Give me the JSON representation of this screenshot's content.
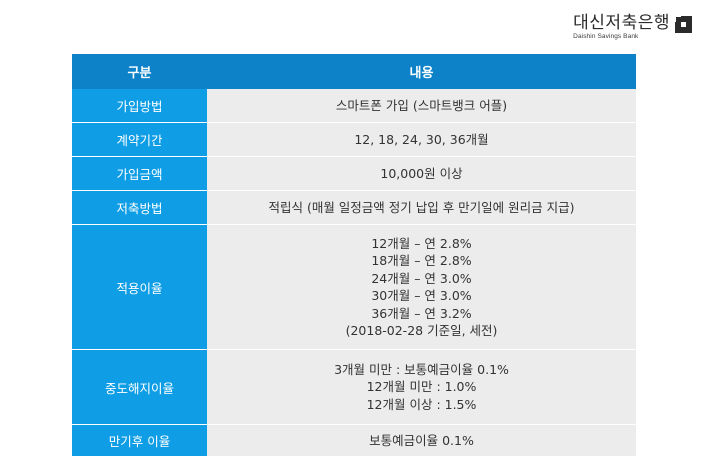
{
  "logo": {
    "name_ko": "대신저축은행",
    "name_en": "Daishin Savings Bank",
    "mark_icon": "daishin-logo-mark"
  },
  "table": {
    "headers": [
      "구분",
      "내용"
    ],
    "rows": [
      {
        "label": "가입방법",
        "lines": [
          "스마트폰 가입 (스마트뱅크 어플)"
        ]
      },
      {
        "label": "계약기간",
        "lines": [
          "12, 18, 24, 30, 36개월"
        ]
      },
      {
        "label": "가입금액",
        "lines": [
          "10,000원 이상"
        ]
      },
      {
        "label": "저축방법",
        "lines": [
          "적립식 (매월 일정금액 정기 납입 후 만기일에 원리금 지급)"
        ]
      },
      {
        "label": "적용이율",
        "lines": [
          "12개월 – 연 2.8%",
          "18개월 – 연 2.8%",
          "24개월 – 연 3.0%",
          "30개월 – 연 3.0%",
          "36개월 – 연 3.2%",
          "(2018-02-28 기준일, 세전)"
        ]
      },
      {
        "label": "중도해지이율",
        "lines": [
          "3개월 미만 : 보통예금이율 0.1%",
          "12개월 미만 : 1.0%",
          "12개월 이상 : 1.5%"
        ]
      },
      {
        "label": "만기후 이율",
        "lines": [
          "보통예금이율 0.1%"
        ]
      }
    ]
  },
  "colors": {
    "header_bg": "#0d82c9",
    "label_bg": "#0f9ee6",
    "value_bg": "#ececec"
  }
}
